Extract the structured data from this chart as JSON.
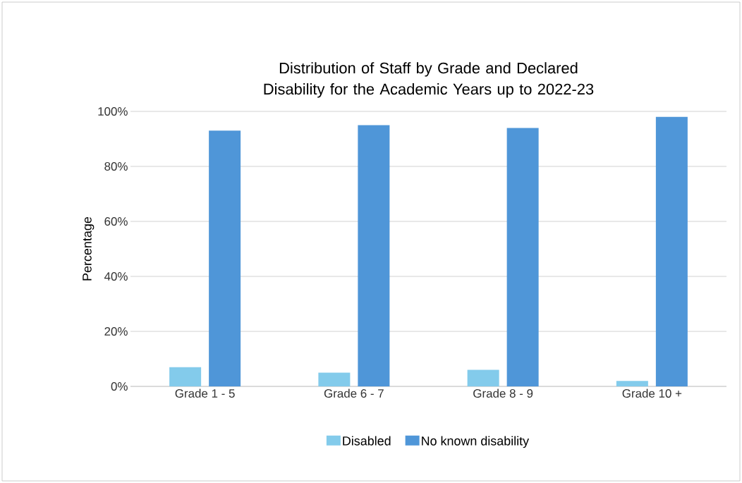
{
  "chart_data": {
    "type": "bar",
    "title": "Distribution of Staff by Grade and Declared Disability for the Academic Years up to 2022-23",
    "ylabel": "Percentage",
    "categories": [
      "Grade 1 - 5",
      "Grade 6 - 7",
      "Grade 8 - 9",
      "Grade 10 +"
    ],
    "series": [
      {
        "name": "Disabled",
        "color": "#83cbeb",
        "values": [
          7,
          5,
          6,
          2
        ]
      },
      {
        "name": "No known disability",
        "color": "#4f96d8",
        "values": [
          93,
          95,
          94,
          98
        ]
      }
    ],
    "ylim": [
      0,
      100
    ],
    "yticks": [
      {
        "value": 0,
        "label": "0%"
      },
      {
        "value": 20,
        "label": "20%"
      },
      {
        "value": 40,
        "label": "40%"
      },
      {
        "value": 60,
        "label": "60%"
      },
      {
        "value": 80,
        "label": "80%"
      },
      {
        "value": 100,
        "label": "100%"
      }
    ],
    "grid": "y",
    "legend": "bottom"
  }
}
